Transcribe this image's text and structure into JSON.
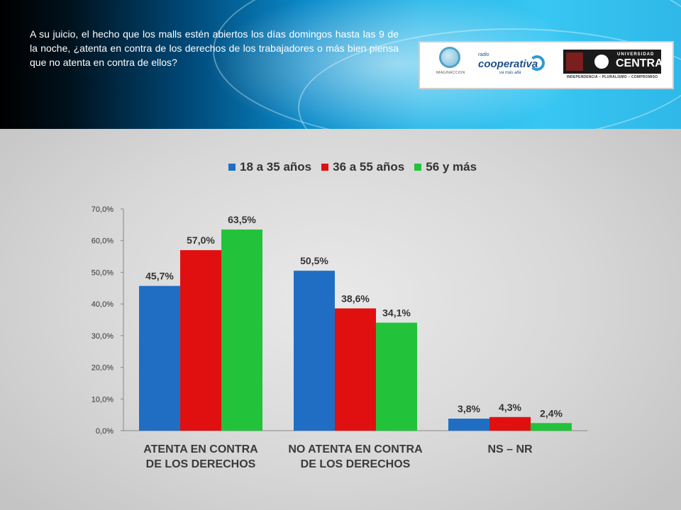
{
  "header": {
    "question": "A su juicio, el hecho que los malls estén abiertos los días domingos hasta las 9 de la noche, ¿atenta en contra de los derechos de los trabajadores o más bien piensa que no atenta en contra de ellos?",
    "logos": {
      "imaginaccion": "IMAGINACCION",
      "radio": "radio",
      "cooperativa": "cooperativa",
      "cooperativa_tag": "va más allá",
      "universidad": "UNIVERSIDAD",
      "central": "CENTRAL",
      "motto": "INDEPENDENCIA – PLURALISMO – COMPROMISO"
    }
  },
  "colors": {
    "series_1": "#1f6ec4",
    "series_2": "#e01010",
    "series_3": "#22c33a"
  },
  "chart_data": {
    "type": "bar",
    "categories": [
      [
        "ATENTA  EN  CONTRA",
        "DE  LOS DERECHOS"
      ],
      [
        "NO  ATENTA EN CONTRA",
        "DE  LOS  DERECHOS"
      ],
      [
        "NS – NR"
      ]
    ],
    "series": [
      {
        "name": "18 a 35 años",
        "values": [
          45.7,
          50.5,
          3.8
        ],
        "labels": [
          "45,7%",
          "50,5%",
          "3,8%"
        ]
      },
      {
        "name": "36 a 55 años",
        "values": [
          57.0,
          38.6,
          4.3
        ],
        "labels": [
          "57,0%",
          "38,6%",
          "4,3%"
        ]
      },
      {
        "name": "56 y más",
        "values": [
          63.5,
          34.1,
          2.4
        ],
        "labels": [
          "63,5%",
          "34,1%",
          "2,4%"
        ]
      }
    ],
    "yticks": [
      "0,0%",
      "10,0%",
      "20,0%",
      "30,0%",
      "40,0%",
      "50,0%",
      "60,0%",
      "70,0%"
    ],
    "ylim": [
      0,
      70
    ],
    "legend_position": "top",
    "grid": false,
    "title": "",
    "xlabel": "",
    "ylabel": ""
  }
}
